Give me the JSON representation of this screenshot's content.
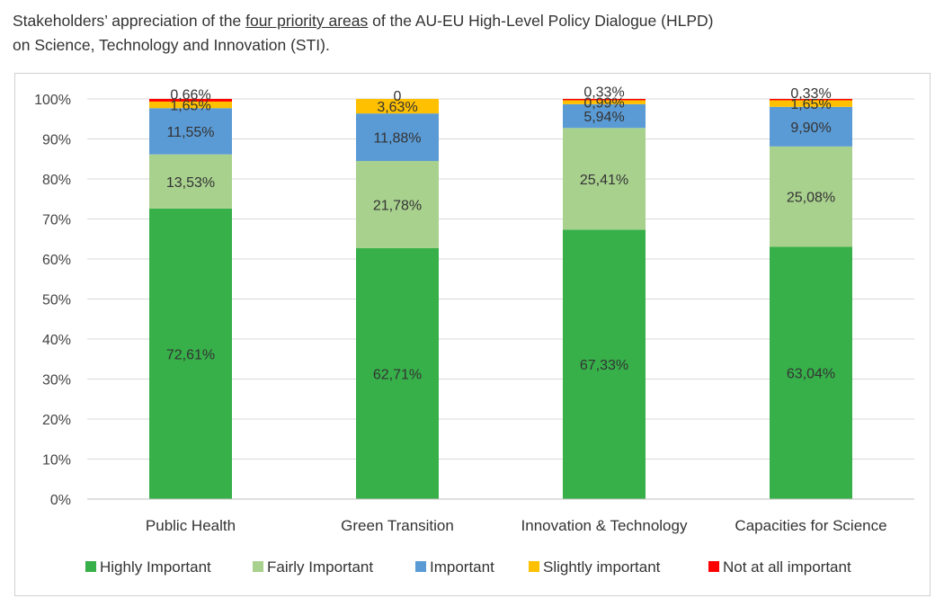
{
  "title": {
    "before": "Stakeholders’ appreciation of the ",
    "underlined": "four priority areas",
    "after": " of the AU-EU High-Level Policy Dialogue (HLPD)",
    "line2": "on Science, Technology and Innovation (STI)."
  },
  "chart_data": {
    "type": "bar",
    "stacked": true,
    "orientation": "vertical",
    "categories": [
      "Public Health",
      "Green Transition",
      "Innovation & Technology",
      "Capacities for Science"
    ],
    "series": [
      {
        "name": "Highly Important",
        "color": "#37b04a",
        "values": [
          72.61,
          62.71,
          67.33,
          63.04
        ],
        "labels": [
          "72,61%",
          "62,71%",
          "67,33%",
          "63,04%"
        ]
      },
      {
        "name": "Fairly Important",
        "color": "#a9d18e",
        "values": [
          13.53,
          21.78,
          25.41,
          25.08
        ],
        "labels": [
          "13,53%",
          "21,78%",
          "25,41%",
          "25,08%"
        ]
      },
      {
        "name": "Important",
        "color": "#5b9bd5",
        "values": [
          11.55,
          11.88,
          5.94,
          9.9
        ],
        "labels": [
          "11,55%",
          "11,88%",
          "5,94%",
          "9,90%"
        ]
      },
      {
        "name": "Slightly important",
        "color": "#ffc000",
        "values": [
          1.65,
          3.63,
          0.99,
          1.65
        ],
        "labels": [
          "1,65%",
          "3,63%",
          "0,99%",
          "1,65%"
        ]
      },
      {
        "name": "Not at all important",
        "color": "#ff0000",
        "values": [
          0.66,
          0,
          0.33,
          0.33
        ],
        "labels": [
          "0,66%",
          "0",
          "0,33%",
          "0,33%"
        ]
      }
    ],
    "yticks": [
      "0%",
      "10%",
      "20%",
      "30%",
      "40%",
      "50%",
      "60%",
      "70%",
      "80%",
      "90%",
      "100%"
    ],
    "ylim": [
      0,
      100
    ],
    "grid": true,
    "legend_position": "bottom"
  }
}
